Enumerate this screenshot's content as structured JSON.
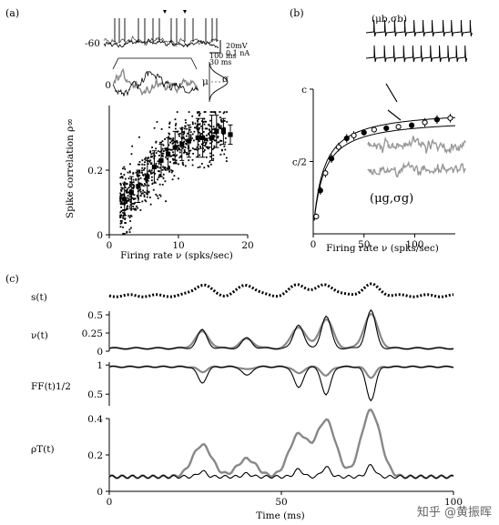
{
  "panel_labels": [
    "(a)",
    "(b)",
    "(c)"
  ],
  "watermark": "知乎 @黄振晖",
  "panel_a_inset": {
    "trace_level_label": "-60",
    "scale_labels": [
      "20mV",
      "0.1 nA",
      "100 ms",
      "30 ms"
    ],
    "lower_zero_label": "0",
    "mu_label": "μ",
    "sigma_label": "σ"
  },
  "panel_b_insets": {
    "top_label": "(μb,σb)",
    "bottom_label": "(μg,σg)"
  },
  "chart_data": [
    {
      "id": "a",
      "type": "scatter",
      "xlabel": "Firing rate ν (spks/sec)",
      "ylabel": "Spike correlation ρ∞",
      "xlim": [
        0,
        20
      ],
      "ylim": [
        0,
        0.4
      ],
      "x_ticks": [
        "0",
        "10",
        "20"
      ],
      "y_ticks": [
        "0",
        "0.2"
      ],
      "binned_means": {
        "x": [
          2.2,
          3.2,
          4.2,
          5.5,
          6.5,
          7.5,
          8.5,
          9.5,
          10.5,
          11.5,
          12.8,
          13.5,
          14.8,
          15.5,
          16.5,
          17.5
        ],
        "y": [
          0.11,
          0.13,
          0.15,
          0.18,
          0.21,
          0.23,
          0.25,
          0.27,
          0.28,
          0.29,
          0.3,
          0.3,
          0.3,
          0.32,
          0.32,
          0.31
        ],
        "err": [
          0.05,
          0.05,
          0.05,
          0.05,
          0.05,
          0.05,
          0.05,
          0.05,
          0.05,
          0.05,
          0.06,
          0.06,
          0.07,
          0.05,
          0.04,
          0.03
        ]
      },
      "scatter_points": 700
    },
    {
      "id": "b",
      "type": "line",
      "xlabel": "Firing rate ν (spks/sec)",
      "ylabel": "",
      "xlim": [
        0,
        140
      ],
      "ylim": [
        0,
        1
      ],
      "x_ticks": [
        "0",
        "50",
        "100"
      ],
      "y_ticks": [
        "c",
        "c/2"
      ],
      "markers": {
        "x": [
          3,
          7,
          12,
          18,
          25,
          33,
          40,
          50,
          60,
          72,
          84,
          97,
          110,
          122,
          135
        ],
        "y": [
          0.12,
          0.3,
          0.42,
          0.52,
          0.6,
          0.66,
          0.68,
          0.7,
          0.72,
          0.73,
          0.74,
          0.75,
          0.77,
          0.79,
          0.8
        ],
        "err": [
          0.02,
          0.03,
          0.03,
          0.03,
          0.03,
          0.03,
          0.03,
          0.02,
          0.02,
          0.02,
          0.02,
          0.02,
          0.03,
          0.03,
          0.03
        ]
      }
    },
    {
      "id": "c",
      "type": "line",
      "xlabel": "Time (ms)",
      "xlim": [
        0,
        100
      ],
      "x_ticks": [
        "0",
        "50",
        "100"
      ],
      "rows": [
        {
          "label": "s(t)",
          "y_ticks": []
        },
        {
          "label": "ν(t)",
          "y_ticks": [
            "0.5",
            "0.25",
            "0"
          ],
          "ylim": [
            0,
            0.55
          ]
        },
        {
          "label": "FF(t)1/2",
          "y_ticks": [
            "1",
            "0.5"
          ],
          "ylim": [
            0.3,
            1.05
          ]
        },
        {
          "label": "ρT(t)",
          "y_ticks": [
            "0.4",
            "0.2",
            "0"
          ],
          "ylim": [
            0,
            0.4
          ]
        }
      ]
    }
  ]
}
